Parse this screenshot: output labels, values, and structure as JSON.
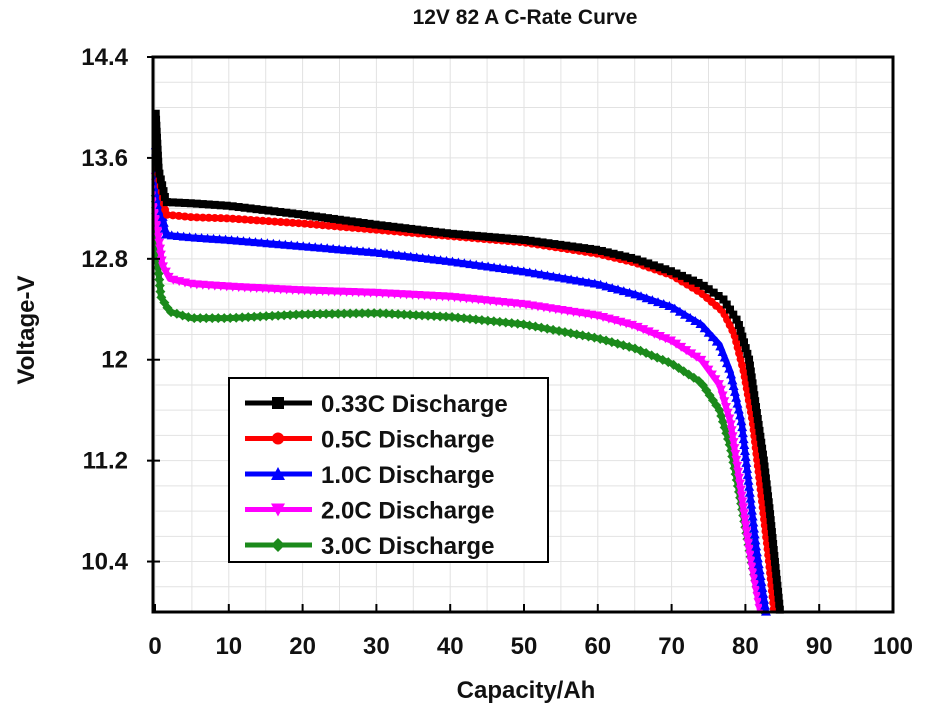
{
  "chart_data": {
    "type": "line",
    "title": "12V 82 A C-Rate Curve",
    "xlabel": "Capacity/Ah",
    "ylabel": "Voltage-V",
    "xlim": [
      0,
      100
    ],
    "ylim": [
      10.0,
      14.4
    ],
    "x_ticks": [
      "0",
      "10",
      "20",
      "30",
      "40",
      "50",
      "60",
      "70",
      "80",
      "90",
      "100"
    ],
    "y_ticks": [
      "14.4",
      "13.6",
      "12.8",
      "12",
      "11.2",
      "10.4"
    ],
    "y_tick_values": [
      14.4,
      13.6,
      12.8,
      12.0,
      11.2,
      10.4
    ],
    "grid": true,
    "legend_position": "bottom-left",
    "series": [
      {
        "name": "0.33C Discharge",
        "legend_label": "0.33C Discharge",
        "color": "#000000",
        "marker": "square",
        "points": [
          [
            0.1,
            13.95
          ],
          [
            0.5,
            13.5
          ],
          [
            1.5,
            13.25
          ],
          [
            5,
            13.24
          ],
          [
            10,
            13.22
          ],
          [
            20,
            13.15
          ],
          [
            30,
            13.07
          ],
          [
            40,
            13.0
          ],
          [
            50,
            12.95
          ],
          [
            60,
            12.87
          ],
          [
            65,
            12.8
          ],
          [
            70,
            12.7
          ],
          [
            74,
            12.6
          ],
          [
            77,
            12.48
          ],
          [
            79,
            12.3
          ],
          [
            80.5,
            12.0
          ],
          [
            81.5,
            11.6
          ],
          [
            82.5,
            11.2
          ],
          [
            83.3,
            10.8
          ],
          [
            84.0,
            10.4
          ],
          [
            84.7,
            10.0
          ]
        ]
      },
      {
        "name": "0.5C Discharge",
        "legend_label": "0.5C   Discharge",
        "color": "#ff0000",
        "marker": "circle",
        "points": [
          [
            0.1,
            13.85
          ],
          [
            0.5,
            13.45
          ],
          [
            1.5,
            13.15
          ],
          [
            5,
            13.13
          ],
          [
            10,
            13.12
          ],
          [
            20,
            13.08
          ],
          [
            30,
            13.03
          ],
          [
            40,
            12.98
          ],
          [
            50,
            12.93
          ],
          [
            60,
            12.84
          ],
          [
            65,
            12.77
          ],
          [
            70,
            12.67
          ],
          [
            74,
            12.53
          ],
          [
            77,
            12.38
          ],
          [
            78.5,
            12.2
          ],
          [
            79.8,
            11.9
          ],
          [
            81.0,
            11.5
          ],
          [
            82.0,
            11.0
          ],
          [
            83.0,
            10.5
          ],
          [
            83.9,
            10.0
          ]
        ]
      },
      {
        "name": "1.0C Discharge",
        "legend_label": "1.0C   Discharge",
        "color": "#0000ff",
        "marker": "triangle-up",
        "points": [
          [
            0.1,
            13.7
          ],
          [
            0.5,
            13.3
          ],
          [
            1.5,
            12.99
          ],
          [
            5,
            12.97
          ],
          [
            10,
            12.95
          ],
          [
            20,
            12.9
          ],
          [
            30,
            12.85
          ],
          [
            40,
            12.78
          ],
          [
            50,
            12.7
          ],
          [
            60,
            12.6
          ],
          [
            65,
            12.52
          ],
          [
            70,
            12.42
          ],
          [
            74,
            12.28
          ],
          [
            76.5,
            12.12
          ],
          [
            78,
            11.9
          ],
          [
            79.5,
            11.5
          ],
          [
            80.5,
            11.0
          ],
          [
            81.5,
            10.5
          ],
          [
            82.8,
            10.0
          ]
        ]
      },
      {
        "name": "2.0C Discharge",
        "legend_label": "2.0C   Discharge",
        "color": "#ff00ff",
        "marker": "triangle-down",
        "points": [
          [
            0.1,
            13.45
          ],
          [
            0.4,
            13.0
          ],
          [
            1.0,
            12.75
          ],
          [
            2,
            12.64
          ],
          [
            5,
            12.6
          ],
          [
            10,
            12.58
          ],
          [
            20,
            12.55
          ],
          [
            30,
            12.53
          ],
          [
            40,
            12.5
          ],
          [
            50,
            12.44
          ],
          [
            60,
            12.35
          ],
          [
            65,
            12.27
          ],
          [
            70,
            12.15
          ],
          [
            74,
            12.0
          ],
          [
            76.5,
            11.8
          ],
          [
            78,
            11.5
          ],
          [
            79.3,
            11.0
          ],
          [
            80.5,
            10.5
          ],
          [
            82.0,
            10.0
          ]
        ]
      },
      {
        "name": "3.0C Discharge",
        "legend_label": "3.0C   Discharge",
        "color": "#1b8a1b",
        "marker": "diamond",
        "points": [
          [
            0.1,
            13.3
          ],
          [
            0.3,
            12.8
          ],
          [
            0.8,
            12.5
          ],
          [
            2,
            12.38
          ],
          [
            5,
            12.33
          ],
          [
            10,
            12.33
          ],
          [
            20,
            12.36
          ],
          [
            30,
            12.37
          ],
          [
            40,
            12.34
          ],
          [
            50,
            12.28
          ],
          [
            60,
            12.17
          ],
          [
            65,
            12.09
          ],
          [
            70,
            11.97
          ],
          [
            74,
            11.82
          ],
          [
            76.5,
            11.6
          ],
          [
            78,
            11.3
          ],
          [
            79.3,
            10.9
          ],
          [
            80.8,
            10.4
          ],
          [
            82.3,
            10.0
          ]
        ]
      }
    ]
  }
}
